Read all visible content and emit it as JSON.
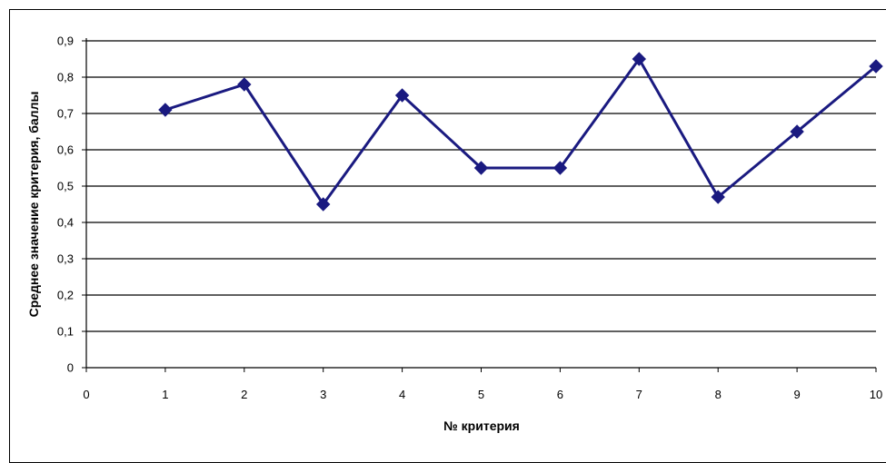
{
  "chart_data": {
    "type": "line",
    "title": "",
    "xlabel": "№ критерия",
    "ylabel": "Среднее значение критерия, баллы",
    "x_ticks": [
      "0",
      "1",
      "2",
      "3",
      "4",
      "5",
      "6",
      "7",
      "8",
      "9",
      "10"
    ],
    "y_ticks": [
      "0",
      "0,1",
      "0,2",
      "0,3",
      "0,4",
      "0,5",
      "0,6",
      "0,7",
      "0,8",
      "0,9"
    ],
    "xlim": [
      0,
      10
    ],
    "ylim": [
      0,
      0.9
    ],
    "grid": "horizontal",
    "series": [
      {
        "x": [
          1,
          2,
          3,
          4,
          5,
          6,
          7,
          8,
          9,
          10
        ],
        "values": [
          0.71,
          0.78,
          0.45,
          0.75,
          0.55,
          0.55,
          0.85,
          0.47,
          0.65,
          0.83
        ],
        "color": "#1a1a80",
        "marker": "diamond"
      }
    ]
  }
}
